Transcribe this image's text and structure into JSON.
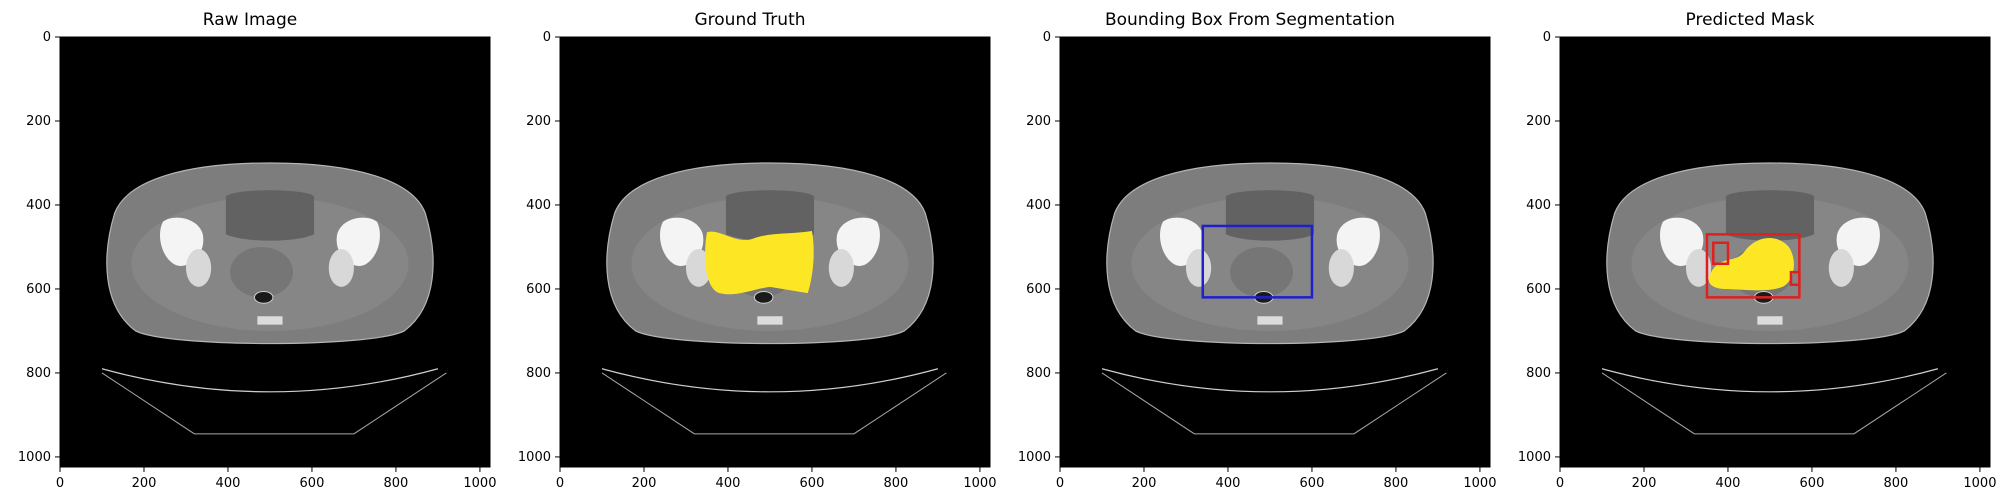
{
  "panels": [
    {
      "title": "Raw Image",
      "overlay": "none"
    },
    {
      "title": "Ground Truth",
      "overlay": "mask"
    },
    {
      "title": "Bounding Box From Segmentation",
      "overlay": "bbox"
    },
    {
      "title": "Predicted Mask",
      "overlay": "prediction"
    }
  ],
  "axes": {
    "xticks": [
      0,
      200,
      400,
      600,
      800,
      1000
    ],
    "yticks": [
      0,
      200,
      400,
      600,
      800,
      1000
    ],
    "xlim": [
      0,
      1024
    ],
    "ylim": [
      1024,
      0
    ]
  },
  "colors": {
    "background": "#000000",
    "mask": "#fde725",
    "bbox": "#1f1fcc",
    "pred_box": "#e02020"
  },
  "ground_truth_bbox": {
    "x0": 340,
    "y0": 450,
    "x1": 600,
    "y1": 620
  },
  "predicted_boxes": [
    {
      "x0": 350,
      "y0": 470,
      "x1": 570,
      "y1": 620
    },
    {
      "x0": 365,
      "y0": 490,
      "x1": 400,
      "y1": 540
    },
    {
      "x0": 550,
      "y0": 560,
      "x1": 570,
      "y1": 590
    }
  ]
}
